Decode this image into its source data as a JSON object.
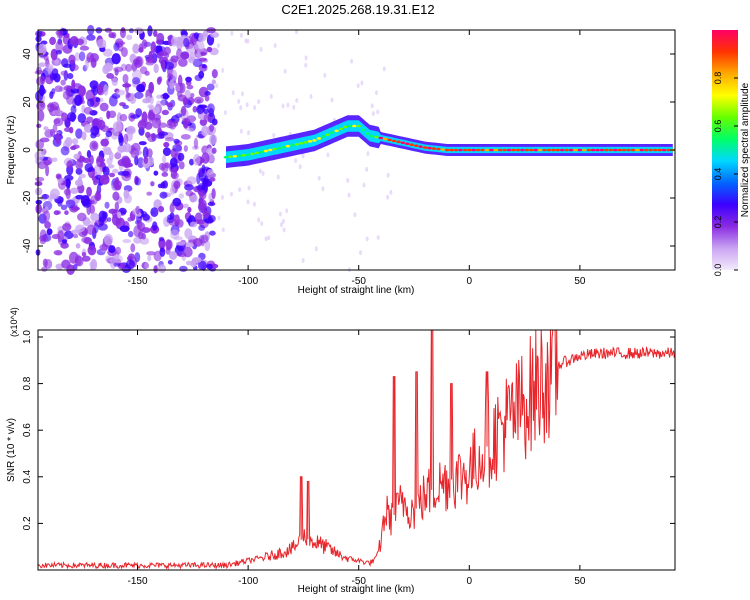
{
  "title": "C2E1.2025.268.19.31.E12",
  "chart_data": [
    {
      "type": "heatmap",
      "title": "C2E1.2025.268.19.31.E12",
      "xlabel": "Height of straight line (km)",
      "ylabel": "Frequency (Hz)",
      "xlim": [
        -195,
        93
      ],
      "ylim": [
        -50,
        50
      ],
      "xticks": [
        -150,
        -100,
        -50,
        0,
        50
      ],
      "yticks": [
        -40,
        -20,
        0,
        20,
        40
      ],
      "colorbar": {
        "label": "Normalized spectral amplitude",
        "range": [
          0,
          1
        ],
        "ticks": [
          0.0,
          0.2,
          0.4,
          0.6,
          0.8
        ],
        "tick_labels": [
          "0.0",
          "0.2",
          "0.4",
          "0.6",
          "0.8"
        ],
        "colors": [
          "#f4eafc",
          "#c9a4f2",
          "#8a2be2",
          "#3c00ff",
          "#0066ff",
          "#00d8ff",
          "#00ff66",
          "#66ff00",
          "#ffff00",
          "#ffaa00",
          "#ff3300",
          "#ff0066"
        ]
      },
      "signal_track": {
        "x": [
          -110,
          -100,
          -90,
          -80,
          -70,
          -60,
          -55,
          -50,
          -45,
          -40,
          -30,
          -20,
          -10,
          0,
          10,
          20,
          40,
          60,
          92
        ],
        "y": [
          -3,
          -2,
          0,
          2,
          4,
          8,
          10,
          10,
          6,
          5,
          3,
          1,
          0,
          0,
          0,
          0,
          0,
          0,
          0
        ]
      }
    },
    {
      "type": "line",
      "xlabel": "Height of straight line (km)",
      "ylabel": "SNR (10 * v/v)",
      "y_multiplier": "(x10^4)",
      "xlim": [
        -195,
        93
      ],
      "ylim": [
        0,
        1.03
      ],
      "xticks": [
        -150,
        -100,
        -50,
        0,
        50
      ],
      "yticks": [
        0.2,
        0.4,
        0.6,
        0.8,
        1.0
      ],
      "series": [
        {
          "name": "SNR",
          "color": "#e8252a",
          "x": [
            -195,
            -150,
            -110,
            -100,
            -90,
            -80,
            -75,
            -70,
            -65,
            -60,
            -55,
            -50,
            -45,
            -42,
            -40,
            -38,
            -35,
            -30,
            -25,
            -20,
            -15,
            -10,
            -5,
            0,
            5,
            10,
            15,
            20,
            25,
            30,
            35,
            40,
            50,
            60,
            70,
            80,
            93
          ],
          "y": [
            0.02,
            0.02,
            0.02,
            0.04,
            0.06,
            0.09,
            0.14,
            0.12,
            0.1,
            0.07,
            0.05,
            0.04,
            0.03,
            0.05,
            0.12,
            0.25,
            0.22,
            0.3,
            0.25,
            0.32,
            0.36,
            0.38,
            0.4,
            0.42,
            0.5,
            0.55,
            0.62,
            0.66,
            0.72,
            0.78,
            0.84,
            0.88,
            0.92,
            0.93,
            0.93,
            0.93,
            0.93
          ]
        }
      ],
      "peaks": [
        {
          "x": -76,
          "y": 0.4
        },
        {
          "x": -73,
          "y": 0.38
        },
        {
          "x": -34,
          "y": 0.83
        },
        {
          "x": -24,
          "y": 0.85
        },
        {
          "x": -17,
          "y": 1.03
        },
        {
          "x": -8,
          "y": 0.8
        },
        {
          "x": 8,
          "y": 0.85
        }
      ]
    }
  ]
}
